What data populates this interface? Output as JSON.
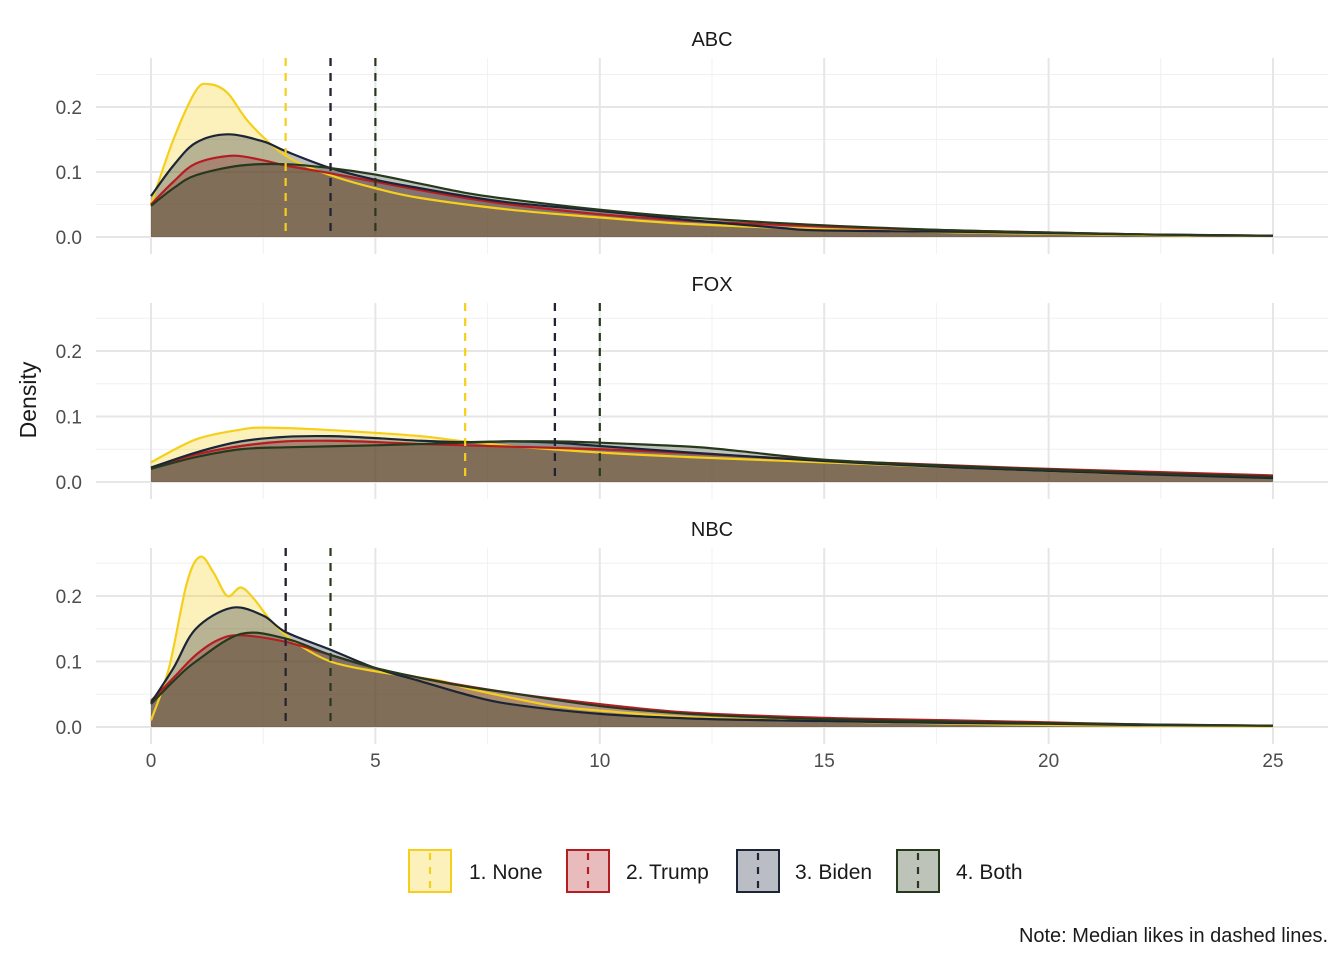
{
  "chart_data": {
    "type": "area",
    "kind": "faceted density plot",
    "ylabel": "Density",
    "xlabel": "",
    "xlim": [
      0,
      25
    ],
    "ylim": [
      0,
      0.25
    ],
    "x_ticks": [
      0,
      5,
      10,
      15,
      20,
      25
    ],
    "y_ticks": [
      0.0,
      0.1,
      0.2
    ],
    "y_tick_labels": [
      "0.0",
      "0.1",
      "0.2"
    ],
    "x_tick_labels": [
      "0",
      "5",
      "10",
      "15",
      "20",
      "25"
    ],
    "grid": true,
    "legend_position": "bottom",
    "caption": "Note: Median likes in dashed lines.",
    "groups": [
      {
        "key": "none",
        "label": "1. None",
        "color": "#f5cf1c"
      },
      {
        "key": "trump",
        "label": "2. Trump",
        "color": "#b41e23"
      },
      {
        "key": "biden",
        "label": "3. Biden",
        "color": "#1c2538"
      },
      {
        "key": "both",
        "label": "4. Both",
        "color": "#27391c"
      }
    ],
    "facets": [
      {
        "title": "ABC",
        "medians": {
          "none": 3,
          "trump": 4,
          "biden": 4,
          "both": 5
        },
        "series": {
          "none": {
            "x": [
              0,
              0.5,
              1,
              1.3,
              1.7,
              2.2,
              3,
              4,
              5,
              6,
              8,
              10,
              12,
              15,
              18,
              20,
              22,
              25
            ],
            "y": [
              0.05,
              0.15,
              0.225,
              0.235,
              0.222,
              0.175,
              0.125,
              0.095,
              0.075,
              0.06,
              0.042,
              0.03,
              0.02,
              0.012,
              0.007,
              0.005,
              0.003,
              0.002
            ]
          },
          "trump": {
            "x": [
              0,
              0.5,
              1,
              1.8,
              2.5,
              3,
              4,
              5,
              6,
              7,
              8,
              10,
              12,
              15,
              18,
              20,
              22,
              25
            ],
            "y": [
              0.05,
              0.085,
              0.113,
              0.125,
              0.118,
              0.11,
              0.098,
              0.085,
              0.072,
              0.06,
              0.05,
              0.035,
              0.025,
              0.016,
              0.01,
              0.007,
              0.004,
              0.002
            ]
          },
          "biden": {
            "x": [
              0,
              0.5,
              1,
              1.7,
              2.5,
              3,
              4,
              5,
              6,
              7,
              8,
              10,
              12,
              14,
              15,
              18,
              20,
              22,
              25
            ],
            "y": [
              0.063,
              0.11,
              0.145,
              0.158,
              0.147,
              0.132,
              0.106,
              0.088,
              0.075,
              0.063,
              0.053,
              0.04,
              0.026,
              0.014,
              0.01,
              0.008,
              0.006,
              0.004,
              0.002
            ]
          },
          "both": {
            "x": [
              0,
              0.5,
              1,
              2,
              3,
              4,
              5,
              6,
              7,
              8,
              10,
              12,
              15,
              18,
              20,
              22,
              25
            ],
            "y": [
              0.048,
              0.075,
              0.095,
              0.11,
              0.112,
              0.106,
              0.096,
              0.082,
              0.068,
              0.058,
              0.042,
              0.03,
              0.018,
              0.01,
              0.007,
              0.004,
              0.002
            ]
          }
        }
      },
      {
        "title": "FOX",
        "medians": {
          "none": 7,
          "trump": 9,
          "biden": 9,
          "both": 10
        },
        "series": {
          "none": {
            "x": [
              0,
              1,
              2,
              2.5,
              3.5,
              5,
              6,
              7,
              8,
              10,
              12,
              15,
              18,
              20,
              22,
              25
            ],
            "y": [
              0.03,
              0.065,
              0.08,
              0.083,
              0.081,
              0.075,
              0.07,
              0.062,
              0.055,
              0.045,
              0.038,
              0.03,
              0.022,
              0.017,
              0.012,
              0.008
            ]
          },
          "trump": {
            "x": [
              0,
              1,
              2,
              3,
              4,
              5,
              6,
              7,
              8,
              10,
              12,
              15,
              18,
              20,
              22,
              25
            ],
            "y": [
              0.022,
              0.042,
              0.055,
              0.062,
              0.063,
              0.061,
              0.058,
              0.056,
              0.054,
              0.05,
              0.044,
              0.033,
              0.025,
              0.02,
              0.016,
              0.01
            ]
          },
          "biden": {
            "x": [
              0,
              1,
              2,
              3,
              4,
              5,
              6,
              7,
              8,
              9,
              10,
              12,
              15,
              18,
              20,
              22,
              25
            ],
            "y": [
              0.022,
              0.045,
              0.062,
              0.069,
              0.07,
              0.067,
              0.063,
              0.061,
              0.062,
              0.06,
              0.055,
              0.045,
              0.032,
              0.022,
              0.017,
              0.012,
              0.006
            ]
          },
          "both": {
            "x": [
              0,
              1,
              2,
              3,
              5,
              7,
              8,
              9,
              10,
              12,
              13,
              15,
              18,
              20,
              22,
              25
            ],
            "y": [
              0.02,
              0.038,
              0.05,
              0.053,
              0.056,
              0.06,
              0.062,
              0.062,
              0.06,
              0.054,
              0.048,
              0.034,
              0.024,
              0.019,
              0.014,
              0.008
            ]
          }
        }
      },
      {
        "title": "NBC",
        "medians": {
          "none": 3,
          "trump": 3,
          "biden": 3,
          "both": 4
        },
        "series": {
          "none": {
            "x": [
              0,
              0.4,
              0.8,
              1.1,
              1.4,
              1.7,
              2.0,
              2.3,
              2.7,
              3.2,
              4,
              5,
              6,
              6.5,
              7,
              8,
              9,
              10,
              12,
              15,
              18,
              20,
              22,
              25
            ],
            "y": [
              0.01,
              0.09,
              0.22,
              0.26,
              0.235,
              0.2,
              0.213,
              0.195,
              0.16,
              0.13,
              0.1,
              0.085,
              0.075,
              0.07,
              0.06,
              0.045,
              0.032,
              0.025,
              0.015,
              0.009,
              0.005,
              0.003,
              0.002,
              0.001
            ]
          },
          "trump": {
            "x": [
              0,
              0.5,
              1,
              1.5,
              2,
              3,
              4,
              5,
              6,
              8,
              10,
              12,
              15,
              18,
              20,
              22,
              25
            ],
            "y": [
              0.04,
              0.075,
              0.11,
              0.133,
              0.14,
              0.13,
              0.11,
              0.09,
              0.075,
              0.052,
              0.035,
              0.022,
              0.014,
              0.01,
              0.007,
              0.004,
              0.002
            ]
          },
          "biden": {
            "x": [
              0,
              0.5,
              1,
              1.8,
              2.5,
              3,
              4,
              5,
              6,
              7,
              8,
              10,
              12,
              14,
              15,
              18,
              20,
              22,
              25
            ],
            "y": [
              0.037,
              0.09,
              0.15,
              0.182,
              0.17,
              0.145,
              0.118,
              0.09,
              0.07,
              0.05,
              0.035,
              0.02,
              0.013,
              0.01,
              0.009,
              0.006,
              0.005,
              0.003,
              0.002
            ]
          },
          "both": {
            "x": [
              0,
              0.5,
              1,
              2,
              3,
              4,
              5,
              6,
              7,
              8,
              10,
              12,
              14,
              15,
              18,
              20,
              22,
              25
            ],
            "y": [
              0.035,
              0.07,
              0.1,
              0.142,
              0.135,
              0.11,
              0.09,
              0.075,
              0.062,
              0.052,
              0.032,
              0.02,
              0.014,
              0.012,
              0.008,
              0.006,
              0.004,
              0.002
            ]
          }
        }
      }
    ]
  }
}
